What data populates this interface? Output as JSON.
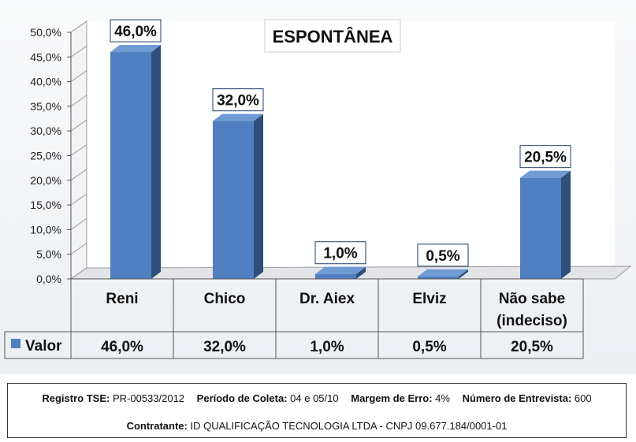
{
  "chart_data": {
    "type": "bar",
    "title": "ESPONTÂNEA",
    "categories": [
      "Reni",
      "Chico",
      "Dr. Aiex",
      "Elviz",
      "Não sabe (indeciso)"
    ],
    "category_lines": [
      [
        "Reni"
      ],
      [
        "Chico"
      ],
      [
        "Dr. Aiex"
      ],
      [
        "Elviz"
      ],
      [
        "Não sabe",
        "(indeciso)"
      ]
    ],
    "series": [
      {
        "name": "Valor",
        "values": [
          46.0,
          32.0,
          1.0,
          0.5,
          20.5
        ]
      }
    ],
    "bar_labels": [
      "46,0%",
      "32,0%",
      "1,0%",
      "0,5%",
      "20,5%"
    ],
    "ylim": [
      0,
      50
    ],
    "y_ticks": [
      0,
      5,
      10,
      15,
      20,
      25,
      30,
      35,
      40,
      45,
      50
    ],
    "y_tick_labels": [
      "0,0%",
      "5,0%",
      "10,0%",
      "15,0%",
      "20,0%",
      "25,0%",
      "30,0%",
      "35,0%",
      "40,0%",
      "45,0%",
      "50,0%"
    ],
    "grid": true,
    "legend": "data-table",
    "colors": {
      "bar_front": "#4f7fc0",
      "bar_side": "#2e4f7a",
      "bar_top": "#6f9ad4"
    }
  },
  "footer": {
    "line1": [
      {
        "label": "Registro TSE:",
        "value": "PR-00533/2012"
      },
      {
        "label": "Período de Coleta:",
        "value": "04 e 05/10"
      },
      {
        "label": "Margem de Erro:",
        "value": "4%"
      },
      {
        "label": "Número de Entrevista:",
        "value": "600"
      }
    ],
    "line2": {
      "label": "Contratante:",
      "value": "ID QUALIFICAÇÃO TECNOLOGIA LTDA - CNPJ 09.677.184/0001-01"
    }
  }
}
